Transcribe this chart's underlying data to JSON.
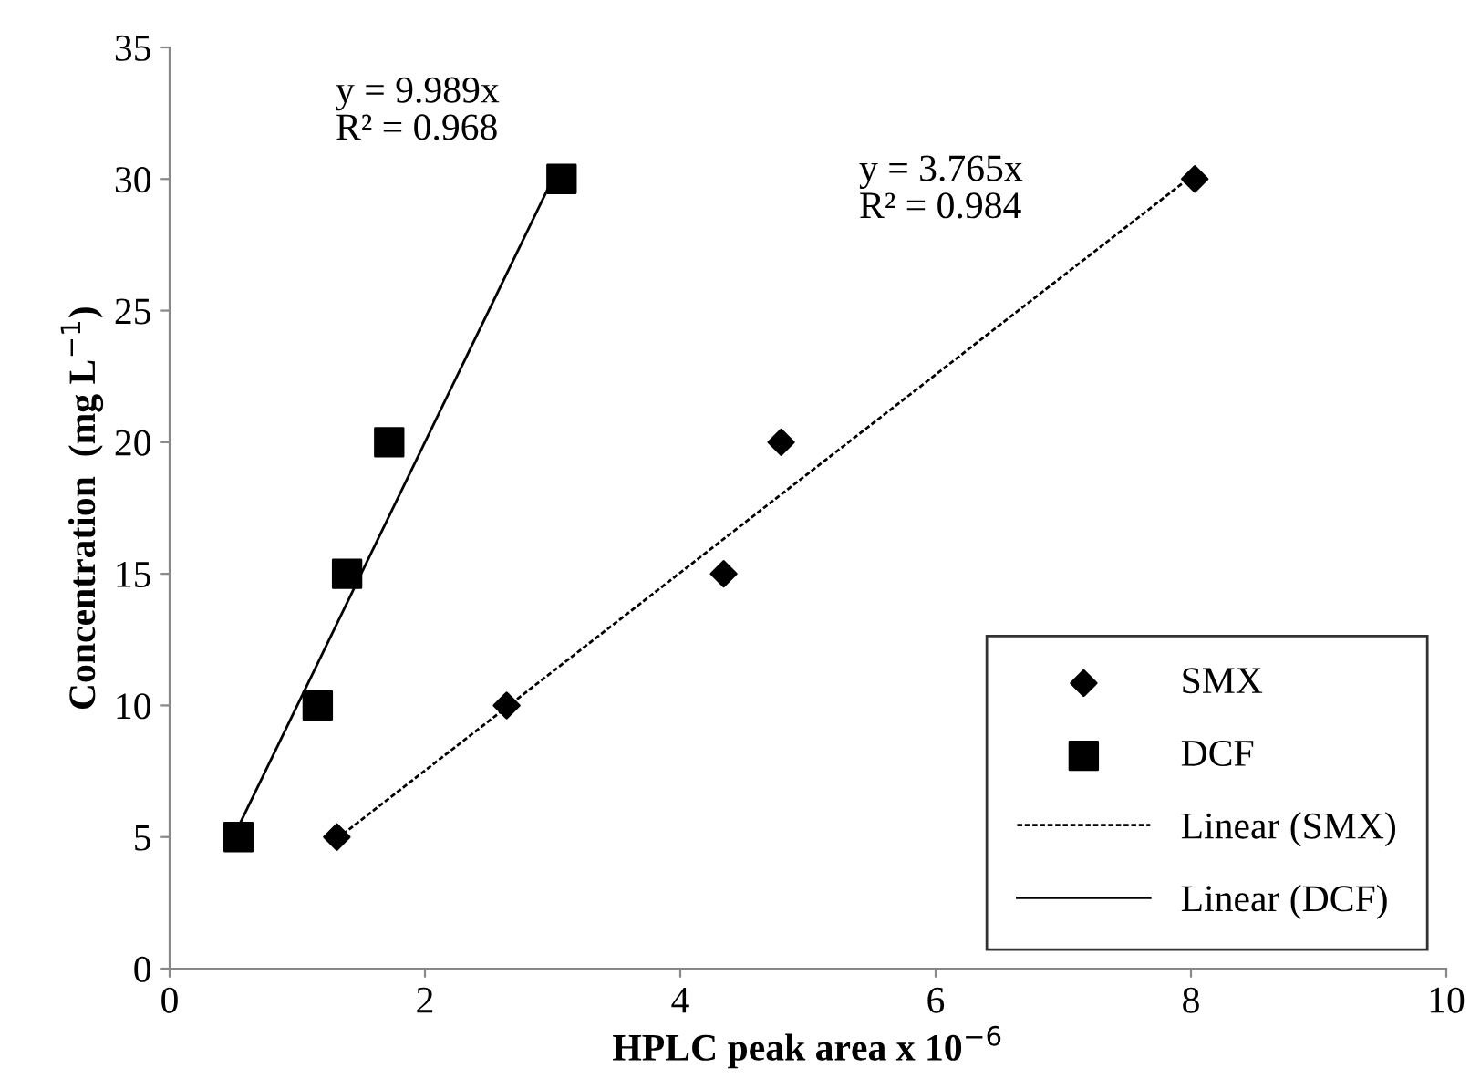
{
  "chart_data": {
    "type": "scatter",
    "xlabel": "HPLC peak area x 10$^{−6}$",
    "ylabel": "Concentration  (mg L$^{−1}$)",
    "xlim": [
      0,
      10
    ],
    "ylim": [
      0,
      35
    ],
    "xticks": [
      0,
      2,
      4,
      6,
      8,
      10
    ],
    "yticks": [
      0,
      5,
      10,
      15,
      20,
      25,
      30,
      35
    ],
    "grid": false,
    "legend": "bottom right",
    "series": [
      {
        "name": "SMX",
        "color": "#000000",
        "marker": "diamond",
        "x": [
          1.31,
          2.64,
          4.34,
          4.79,
          8.03
        ],
        "values": [
          5,
          10,
          15,
          20,
          30
        ]
      },
      {
        "name": "DCF",
        "color": "#000000",
        "marker": "square",
        "x": [
          0.54,
          1.16,
          1.39,
          1.72,
          3.07
        ],
        "values": [
          5,
          10,
          15,
          20,
          30
        ]
      },
      {
        "name": "Linear (SMX)",
        "type": "line",
        "color": "#000000",
        "marker": "none",
        "line_style": "dotted",
        "x": [
          1.31,
          8.03
        ],
        "values": [
          4.93,
          30.2
        ]
      },
      {
        "name": "Linear (DCF)",
        "type": "line",
        "color": "#000000",
        "marker": "none",
        "line_style": "solid",
        "x": [
          0.5,
          3.05
        ],
        "values": [
          5.0,
          30.5
        ]
      }
    ],
    "annotations": [
      "y = 9.989x\nR² = 0.968",
      "y = 3.765x\nR² = 0.984"
    ]
  }
}
